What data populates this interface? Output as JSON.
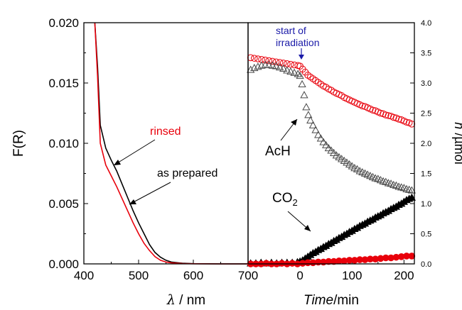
{
  "chart_data": [
    {
      "type": "line",
      "xlabel": "λ / nm",
      "xlabel_symbol": "λ",
      "xlabel_unit": " / nm",
      "ylabel": "F(R)",
      "xlim": [
        400,
        700
      ],
      "ylim": [
        0,
        0.02
      ],
      "xticks": [
        "400",
        "500",
        "600",
        "700"
      ],
      "xtick_values": [
        400,
        500,
        600,
        700
      ],
      "yticks": [
        "0.000",
        "0.005",
        "0.010",
        "0.015",
        "0.020"
      ],
      "ytick_values": [
        0,
        0.005,
        0.01,
        0.015,
        0.02
      ],
      "series": [
        {
          "name": "as prepared",
          "color": "#000000",
          "x": [
            420,
            425,
            430,
            440,
            450,
            460,
            470,
            480,
            490,
            500,
            510,
            520,
            530,
            540,
            550,
            560,
            580,
            600,
            650,
            700
          ],
          "y": [
            0.02,
            0.0163,
            0.0115,
            0.0096,
            0.0086,
            0.0077,
            0.0066,
            0.0055,
            0.0044,
            0.0034,
            0.0025,
            0.0016,
            0.00095,
            0.00055,
            0.0003,
            0.00015,
            5e-05,
            2e-05,
            0.0,
            0.0
          ]
        },
        {
          "name": "rinsed",
          "color": "#e8000b",
          "x": [
            420,
            425,
            430,
            440,
            450,
            460,
            470,
            480,
            490,
            500,
            510,
            520,
            530,
            540,
            550,
            560,
            580,
            600,
            650,
            700
          ],
          "y": [
            0.02,
            0.0155,
            0.01,
            0.0082,
            0.0073,
            0.0064,
            0.0054,
            0.0044,
            0.0034,
            0.0025,
            0.0017,
            0.0011,
            0.0006,
            0.0003,
            0.00015,
            8e-05,
            3e-05,
            1e-05,
            0.0,
            0.0
          ]
        }
      ],
      "annotations": [
        {
          "text": "rinsed",
          "color": "#e8000b"
        },
        {
          "text": "as prepared",
          "color": "#000000"
        }
      ]
    },
    {
      "type": "scatter",
      "xlabel": "Time/min",
      "xlabel_italic": "Time",
      "xlabel_unit": "/min",
      "ylabel": "n /µmol",
      "ylabel_italic": "n",
      "ylabel_unit": " /µmol",
      "xlim": [
        -100,
        220
      ],
      "ylim": [
        0,
        4
      ],
      "xticks": [
        "0",
        "100",
        "200"
      ],
      "xtick_values": [
        0,
        100,
        200
      ],
      "yticks": [
        "0.0",
        "0.5",
        "1.0",
        "1.5",
        "2.0",
        "2.5",
        "3.0",
        "3.5",
        "4.0"
      ],
      "ytick_values": [
        0,
        0.5,
        1,
        1.5,
        2,
        2.5,
        3,
        3.5,
        4
      ],
      "series": [
        {
          "name": "",
          "marker": "open-circle",
          "color": "#e8000b",
          "x": [
            -95,
            -88,
            -81,
            -74,
            -67,
            -60,
            -53,
            -46,
            -39,
            -32,
            -25,
            -18,
            -11,
            -4,
            0,
            5,
            10,
            15,
            20,
            25,
            30,
            35,
            40,
            45,
            50,
            55,
            60,
            65,
            70,
            75,
            80,
            85,
            90,
            95,
            100,
            105,
            110,
            115,
            120,
            125,
            130,
            135,
            140,
            145,
            150,
            155,
            160,
            165,
            170,
            175,
            180,
            185,
            190,
            195,
            200,
            205,
            210,
            215
          ],
          "y": [
            3.42,
            3.41,
            3.4,
            3.39,
            3.38,
            3.37,
            3.36,
            3.35,
            3.34,
            3.33,
            3.32,
            3.31,
            3.3,
            3.29,
            3.28,
            3.23,
            3.18,
            3.13,
            3.1,
            3.07,
            3.04,
            3.01,
            2.98,
            2.95,
            2.93,
            2.9,
            2.88,
            2.85,
            2.83,
            2.81,
            2.79,
            2.76,
            2.74,
            2.72,
            2.7,
            2.68,
            2.66,
            2.64,
            2.62,
            2.61,
            2.59,
            2.57,
            2.55,
            2.54,
            2.52,
            2.5,
            2.49,
            2.47,
            2.46,
            2.45,
            2.43,
            2.42,
            2.4,
            2.39,
            2.37,
            2.35,
            2.34,
            2.32
          ]
        },
        {
          "name": "AcH",
          "marker": "open-triangle",
          "color": "#4a4a4a",
          "x": [
            -95,
            -88,
            -81,
            -74,
            -67,
            -60,
            -53,
            -46,
            -39,
            -32,
            -25,
            -18,
            -11,
            -4,
            0,
            4,
            8,
            12,
            16,
            20,
            25,
            30,
            35,
            40,
            45,
            50,
            55,
            60,
            65,
            70,
            75,
            80,
            85,
            90,
            95,
            100,
            105,
            110,
            115,
            120,
            125,
            130,
            135,
            140,
            145,
            150,
            155,
            160,
            165,
            170,
            175,
            180,
            185,
            190,
            195,
            200,
            205,
            210,
            215
          ],
          "y": [
            3.22,
            3.25,
            3.27,
            3.29,
            3.3,
            3.3,
            3.29,
            3.28,
            3.26,
            3.24,
            3.21,
            3.19,
            3.17,
            3.15,
            3.12,
            2.98,
            2.8,
            2.6,
            2.47,
            2.38,
            2.3,
            2.22,
            2.14,
            2.08,
            2.02,
            1.97,
            1.92,
            1.88,
            1.84,
            1.8,
            1.77,
            1.74,
            1.71,
            1.68,
            1.65,
            1.62,
            1.59,
            1.57,
            1.54,
            1.52,
            1.5,
            1.48,
            1.46,
            1.44,
            1.42,
            1.41,
            1.39,
            1.37,
            1.36,
            1.34,
            1.33,
            1.31,
            1.3,
            1.28,
            1.27,
            1.26,
            1.24,
            1.23,
            1.22
          ]
        },
        {
          "name": "CO2",
          "marker": "filled-triangle",
          "color": "#000000",
          "x": [
            -95,
            -85,
            -75,
            -65,
            -55,
            -45,
            -35,
            -25,
            -15,
            -5,
            0,
            5,
            10,
            15,
            20,
            25,
            30,
            35,
            40,
            45,
            50,
            55,
            60,
            65,
            70,
            75,
            80,
            85,
            90,
            95,
            100,
            105,
            110,
            115,
            120,
            125,
            130,
            135,
            140,
            145,
            150,
            155,
            160,
            165,
            170,
            175,
            180,
            185,
            190,
            195,
            200,
            205,
            210,
            215
          ],
          "y": [
            0.01,
            0.01,
            0.02,
            0.01,
            0.02,
            0.01,
            0.02,
            0.02,
            0.02,
            0.03,
            0.04,
            0.06,
            0.09,
            0.12,
            0.15,
            0.18,
            0.2,
            0.23,
            0.25,
            0.28,
            0.3,
            0.33,
            0.35,
            0.38,
            0.4,
            0.43,
            0.45,
            0.48,
            0.5,
            0.53,
            0.55,
            0.58,
            0.6,
            0.63,
            0.65,
            0.67,
            0.7,
            0.72,
            0.74,
            0.77,
            0.79,
            0.81,
            0.84,
            0.86,
            0.88,
            0.91,
            0.93,
            0.95,
            0.98,
            1.0,
            1.03,
            1.06,
            1.08,
            1.1
          ]
        },
        {
          "name": "",
          "marker": "filled-circle",
          "color": "#e8000b",
          "x": [
            -95,
            -85,
            -75,
            -65,
            -55,
            -45,
            -35,
            -25,
            -15,
            -5,
            5,
            15,
            25,
            35,
            45,
            55,
            65,
            75,
            85,
            95,
            105,
            115,
            125,
            135,
            145,
            155,
            165,
            175,
            185,
            195,
            205,
            215
          ],
          "y": [
            0.0,
            0.0,
            0.0,
            0.01,
            0.0,
            0.0,
            0.01,
            0.0,
            0.01,
            0.0,
            0.01,
            0.02,
            0.02,
            0.03,
            0.03,
            0.04,
            0.04,
            0.05,
            0.05,
            0.06,
            0.06,
            0.07,
            0.07,
            0.08,
            0.08,
            0.09,
            0.1,
            0.1,
            0.11,
            0.12,
            0.13,
            0.13
          ]
        }
      ],
      "annotations": [
        {
          "text": "start of",
          "color": "#1a1aa8"
        },
        {
          "text": "irradiation",
          "color": "#1a1aa8"
        },
        {
          "text": "AcH",
          "color": "#000000"
        },
        {
          "text": "CO",
          "sub": "2",
          "color": "#000000"
        }
      ]
    }
  ]
}
